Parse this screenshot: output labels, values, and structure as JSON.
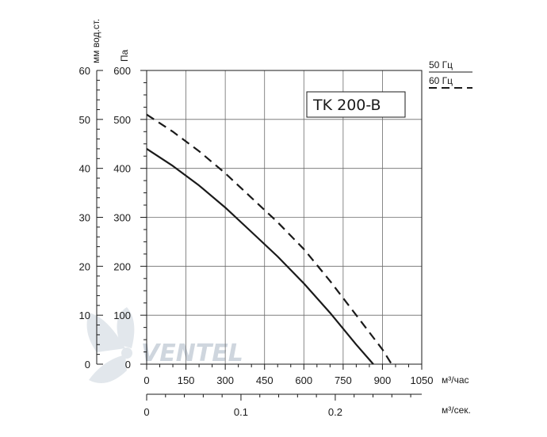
{
  "chart_data": {
    "type": "line",
    "title": "TK 200-B",
    "x_primary": {
      "label": "м³/час",
      "ticks": [
        "0",
        "150",
        "300",
        "450",
        "600",
        "750",
        "900",
        "1050"
      ],
      "range": [
        0,
        1050
      ]
    },
    "x_secondary": {
      "label": "м³/сек.",
      "ticks": [
        "0",
        "0.1",
        "0.2"
      ],
      "range": [
        0,
        0.2917
      ]
    },
    "y_primary": {
      "label": "Па",
      "ticks": [
        "0",
        "100",
        "200",
        "300",
        "400",
        "500",
        "600"
      ],
      "range": [
        0,
        600
      ]
    },
    "y_secondary": {
      "label": "мм вод.ст.",
      "ticks": [
        "0",
        "10",
        "20",
        "30",
        "40",
        "50",
        "60"
      ],
      "range": [
        0,
        60
      ]
    },
    "grid": true,
    "legend": {
      "position": "top-right"
    },
    "series": [
      {
        "name": "50 Гц",
        "style": "solid",
        "x": [
          0,
          100,
          200,
          300,
          400,
          500,
          600,
          700,
          800,
          865
        ],
        "y": [
          440,
          405,
          365,
          320,
          270,
          220,
          165,
          105,
          40,
          0
        ]
      },
      {
        "name": "60 Гц",
        "style": "dashed",
        "x": [
          0,
          100,
          200,
          300,
          400,
          500,
          600,
          700,
          800,
          900,
          935
        ],
        "y": [
          510,
          475,
          435,
          390,
          340,
          290,
          235,
          170,
          100,
          30,
          0
        ]
      }
    ],
    "watermark": "VENTEL"
  }
}
